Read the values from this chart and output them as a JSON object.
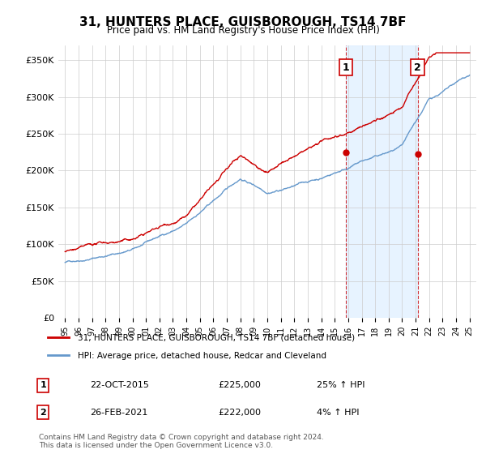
{
  "title": "31, HUNTERS PLACE, GUISBOROUGH, TS14 7BF",
  "subtitle": "Price paid vs. HM Land Registry's House Price Index (HPI)",
  "ylim": [
    0,
    370000
  ],
  "yticks": [
    0,
    50000,
    100000,
    150000,
    200000,
    250000,
    300000,
    350000
  ],
  "ytick_labels": [
    "£0",
    "£50K",
    "£100K",
    "£150K",
    "£200K",
    "£250K",
    "£300K",
    "£350K"
  ],
  "sale1_date_num": 2015.81,
  "sale1_price": 225000,
  "sale1_label": "1",
  "sale1_hpi_pct": "25%",
  "sale2_date_num": 2021.15,
  "sale2_price": 222000,
  "sale2_label": "2",
  "sale2_hpi_pct": "4%",
  "line1_color": "#cc0000",
  "line2_color": "#6699cc",
  "legend_line1": "31, HUNTERS PLACE, GUISBOROUGH, TS14 7BF (detached house)",
  "legend_line2": "HPI: Average price, detached house, Redcar and Cleveland",
  "annotation1_date": "22-OCT-2015",
  "annotation1_price": "£225,000",
  "annotation1_hpi": "25% ↑ HPI",
  "annotation2_date": "26-FEB-2021",
  "annotation2_price": "£222,000",
  "annotation2_hpi": "4% ↑ HPI",
  "footer": "Contains HM Land Registry data © Crown copyright and database right 2024.\nThis data is licensed under the Open Government Licence v3.0.",
  "bg_color": "#ffffff",
  "grid_color": "#cccccc",
  "shade_color": "#ddeeff"
}
